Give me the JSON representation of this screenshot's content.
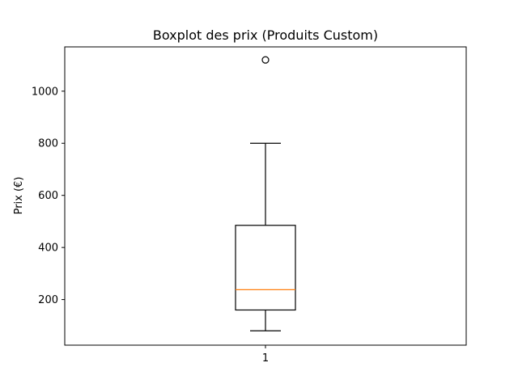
{
  "chart_data": {
    "type": "boxplot",
    "title": "Boxplot des prix (Produits Custom)",
    "xlabel": "",
    "ylabel": "Prix (€)",
    "ylim": [
      25,
      1170
    ],
    "y_ticks": [
      200,
      400,
      600,
      800,
      1000
    ],
    "categories": [
      "1"
    ],
    "boxes": [
      {
        "category": "1",
        "whisker_low": 80,
        "q1": 160,
        "median": 238,
        "q3": 485,
        "whisker_high": 800,
        "outliers": [
          1120
        ]
      }
    ],
    "grid": false,
    "colors": {
      "box": "#000000",
      "median": "#ff7f0e",
      "background": "#ffffff"
    }
  }
}
